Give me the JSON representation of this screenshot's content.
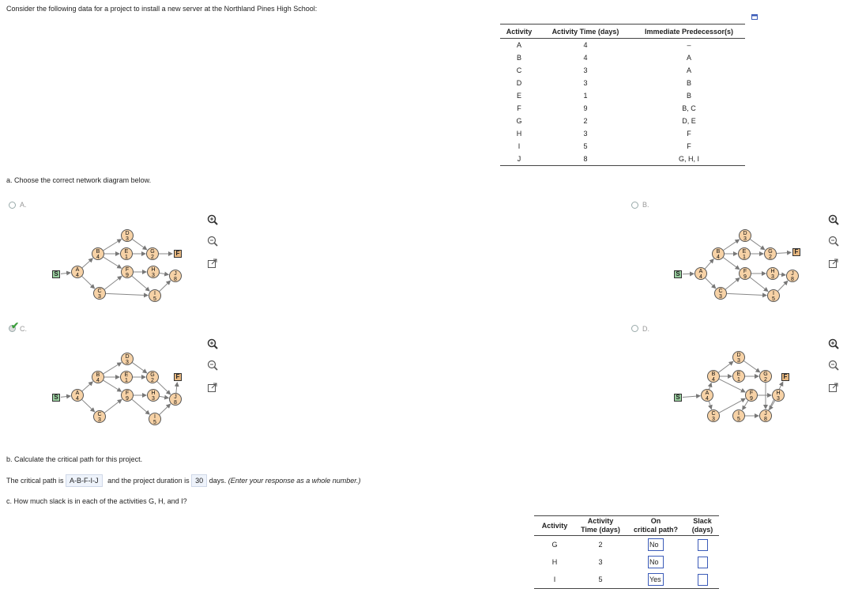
{
  "intro": "Consider the following data for a project to install a new server at the Northland Pines High School:",
  "table": {
    "headers": [
      "Activity",
      "Activity Time (days)",
      "Immediate Predecessor(s)"
    ],
    "rows": [
      [
        "A",
        "4",
        "–"
      ],
      [
        "B",
        "4",
        "A"
      ],
      [
        "C",
        "3",
        "A"
      ],
      [
        "D",
        "3",
        "B"
      ],
      [
        "E",
        "1",
        "B"
      ],
      [
        "F",
        "9",
        "B, C"
      ],
      [
        "G",
        "2",
        "D, E"
      ],
      [
        "H",
        "3",
        "F"
      ],
      [
        "I",
        "5",
        "F"
      ],
      [
        "J",
        "8",
        "G, H, I"
      ]
    ]
  },
  "part_a": {
    "question": "a. Choose the correct network diagram below.",
    "options": [
      {
        "label": "A.",
        "selected": false
      },
      {
        "label": "B.",
        "selected": false
      },
      {
        "label": "C.",
        "selected": true
      },
      {
        "label": "D.",
        "selected": false
      }
    ],
    "node_labels": {
      "start": "S",
      "finish": "F"
    },
    "nodes": {
      "A": "4",
      "B": "4",
      "C": "3",
      "D": "3",
      "E": "1",
      "F": "9",
      "G": "2",
      "H": "3",
      "I": "5",
      "J": "8"
    }
  },
  "part_b": {
    "question": "b. Calculate the critical path for this project.",
    "prefix": "The critical path is",
    "critical_path": "A-B-F-I-J",
    "middle": "and the project duration is",
    "duration": "30",
    "suffix": "days.",
    "hint": "(Enter your response as a whole number.)"
  },
  "part_c": {
    "question": "c. How much slack is in each of the activities G, H, and I?",
    "headers": [
      "Activity",
      "Activity\nTime (days)",
      "On\ncritical path?",
      "Slack\n(days)"
    ],
    "header_lines": [
      [
        "Activity"
      ],
      [
        "Activity",
        "Time (days)"
      ],
      [
        "On",
        "critical path?"
      ],
      [
        "Slack",
        "(days)"
      ]
    ],
    "rows": [
      {
        "activity": "G",
        "time": "2",
        "critical": "No",
        "slack": ""
      },
      {
        "activity": "H",
        "time": "3",
        "critical": "No",
        "slack": ""
      },
      {
        "activity": "I",
        "time": "5",
        "critical": "Yes",
        "slack": ""
      }
    ]
  },
  "icons": {
    "zoom_in": "zoom-in-icon",
    "zoom_out": "zoom-out-icon",
    "popout": "popout-icon",
    "minimize": "minimize-icon"
  }
}
